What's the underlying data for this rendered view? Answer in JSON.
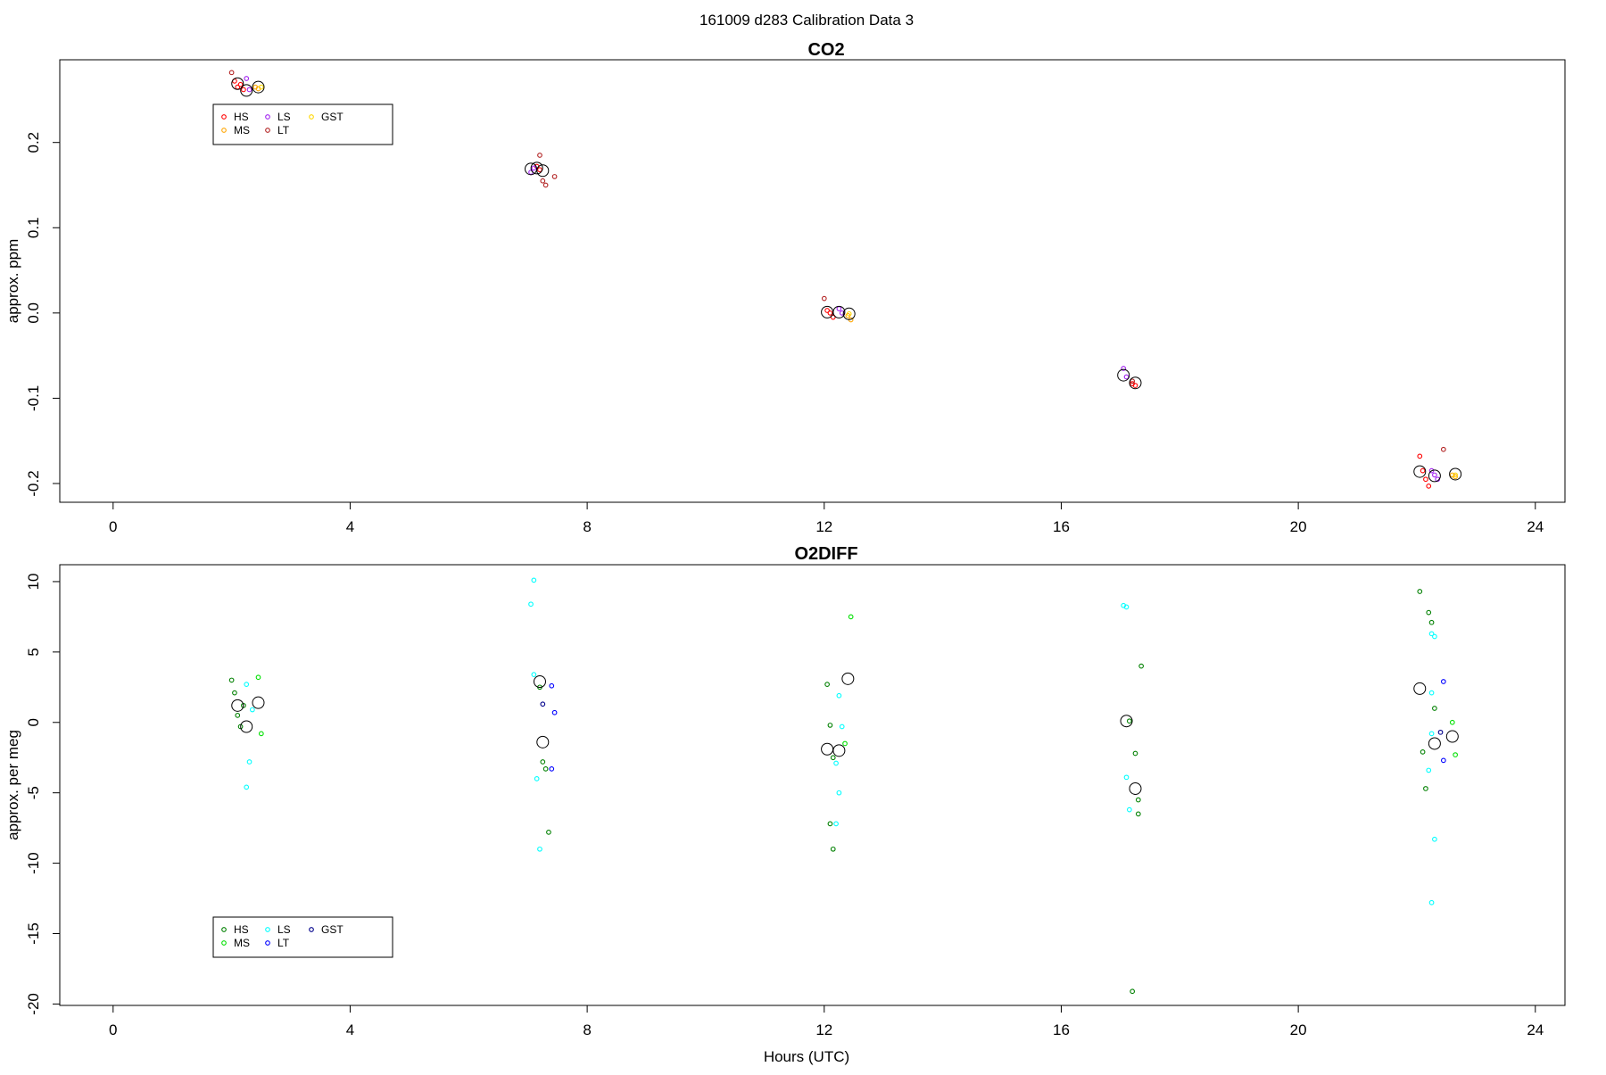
{
  "suptitle": "161009   d283   Calibration Data 3",
  "xlabel": "Hours (UTC)",
  "x_ticks": [
    "0",
    "4",
    "8",
    "12",
    "16",
    "20",
    "24"
  ],
  "chart_data": [
    {
      "type": "scatter",
      "title": "CO2",
      "ylabel": "approx. ppm",
      "xlim": [
        -0.9,
        24.5
      ],
      "ylim": [
        -0.222,
        0.297
      ],
      "yticks": [
        -0.2,
        -0.1,
        0.0,
        0.1,
        0.2
      ],
      "ytick_labels": [
        "-0.2",
        "-0.1",
        "0.0",
        "0.1",
        "0.2"
      ],
      "grid": false,
      "legend_position": "top-left",
      "legend": [
        {
          "name": "HS",
          "color": "#ff0000"
        },
        {
          "name": "MS",
          "color": "#ffa500"
        },
        {
          "name": "LS",
          "color": "#a020f0"
        },
        {
          "name": "LT",
          "color": "#b22222"
        },
        {
          "name": "GST",
          "color": "#ffd700"
        }
      ],
      "series": [
        {
          "name": "HS",
          "color": "#ff0000",
          "points": [
            [
              2.05,
              0.272
            ],
            [
              2.1,
              0.265
            ],
            [
              2.15,
              0.268
            ],
            [
              2.2,
              0.262
            ],
            [
              7.15,
              0.172
            ],
            [
              7.2,
              0.168
            ],
            [
              12.05,
              0.003
            ],
            [
              12.1,
              0.0
            ],
            [
              12.15,
              -0.005
            ],
            [
              17.2,
              -0.083
            ],
            [
              17.25,
              -0.085
            ],
            [
              22.05,
              -0.168
            ],
            [
              22.1,
              -0.185
            ],
            [
              22.15,
              -0.195
            ],
            [
              22.2,
              -0.203
            ]
          ],
          "means": [
            [
              2.1,
              0.269
            ],
            [
              7.15,
              0.17
            ],
            [
              12.05,
              0.001
            ],
            [
              22.05,
              -0.186
            ]
          ]
        },
        {
          "name": "MS",
          "color": "#ffa500",
          "points": [
            [
              2.4,
              0.265
            ],
            [
              2.45,
              0.263
            ],
            [
              12.4,
              -0.003
            ],
            [
              12.45,
              -0.008
            ],
            [
              22.6,
              -0.19
            ],
            [
              22.65,
              -0.192
            ]
          ],
          "means": [
            [
              2.45,
              0.265
            ],
            [
              12.42,
              -0.001
            ],
            [
              22.65,
              -0.189
            ]
          ]
        },
        {
          "name": "LS",
          "color": "#a020f0",
          "points": [
            [
              2.25,
              0.275
            ],
            [
              2.3,
              0.262
            ],
            [
              7.05,
              0.165
            ],
            [
              7.1,
              0.17
            ],
            [
              12.25,
              0.005
            ],
            [
              12.3,
              0.0
            ],
            [
              17.05,
              -0.065
            ],
            [
              17.1,
              -0.075
            ],
            [
              22.25,
              -0.185
            ],
            [
              22.3,
              -0.19
            ],
            [
              22.35,
              -0.195
            ]
          ],
          "means": [
            [
              2.25,
              0.261
            ],
            [
              7.05,
              0.169
            ],
            [
              12.25,
              0.001
            ],
            [
              17.05,
              -0.073
            ],
            [
              22.3,
              -0.191
            ]
          ]
        },
        {
          "name": "LT",
          "color": "#b22222",
          "points": [
            [
              2.0,
              0.282
            ],
            [
              7.2,
              0.185
            ],
            [
              7.25,
              0.155
            ],
            [
              7.3,
              0.15
            ],
            [
              7.45,
              0.16
            ],
            [
              12.0,
              0.017
            ],
            [
              17.2,
              -0.08
            ],
            [
              22.45,
              -0.16
            ]
          ],
          "means": [
            [
              7.25,
              0.167
            ],
            [
              17.25,
              -0.082
            ]
          ]
        },
        {
          "name": "GST",
          "color": "#ffd700",
          "points": [
            [
              2.5,
              0.265
            ],
            [
              12.42,
              -0.001
            ],
            [
              22.65,
              -0.19
            ]
          ],
          "means": []
        }
      ]
    },
    {
      "type": "scatter",
      "title": "O2DIFF",
      "ylabel": "approx. per meg",
      "xlim": [
        -0.9,
        24.5
      ],
      "ylim": [
        -20.1,
        11.2
      ],
      "yticks": [
        -20,
        -15,
        -10,
        -5,
        0,
        5,
        10
      ],
      "ytick_labels": [
        "-20",
        "-15",
        "-10",
        "-5",
        "0",
        "5",
        "10"
      ],
      "grid": false,
      "legend_position": "bottom-left",
      "legend": [
        {
          "name": "HS",
          "color": "#008000"
        },
        {
          "name": "MS",
          "color": "#00e000"
        },
        {
          "name": "LS",
          "color": "#00ffff"
        },
        {
          "name": "LT",
          "color": "#0000ff"
        },
        {
          "name": "GST",
          "color": "#00008b"
        }
      ],
      "series": [
        {
          "name": "HS",
          "color": "#008000",
          "points": [
            [
              2.0,
              3.0
            ],
            [
              2.05,
              2.1
            ],
            [
              2.1,
              0.5
            ],
            [
              2.15,
              -0.3
            ],
            [
              2.2,
              1.2
            ],
            [
              7.2,
              2.5
            ],
            [
              7.25,
              -2.8
            ],
            [
              7.3,
              -3.3
            ],
            [
              7.35,
              -7.8
            ],
            [
              12.05,
              2.7
            ],
            [
              12.1,
              -0.2
            ],
            [
              12.15,
              -2.5
            ],
            [
              12.1,
              -7.2
            ],
            [
              12.15,
              -9.0
            ],
            [
              17.15,
              0.1
            ],
            [
              17.25,
              -2.2
            ],
            [
              17.3,
              -5.5
            ],
            [
              17.3,
              -6.5
            ],
            [
              17.35,
              4.0
            ],
            [
              17.2,
              -19.1
            ],
            [
              22.05,
              9.3
            ],
            [
              22.1,
              -2.1
            ],
            [
              22.15,
              -4.7
            ],
            [
              22.2,
              7.8
            ],
            [
              22.25,
              7.1
            ],
            [
              22.3,
              1.0
            ]
          ],
          "means": [
            [
              2.1,
              1.2
            ],
            [
              7.2,
              2.9
            ],
            [
              12.05,
              -1.9
            ],
            [
              17.1,
              0.1
            ],
            [
              22.05,
              2.4
            ]
          ]
        },
        {
          "name": "MS",
          "color": "#00e000",
          "points": [
            [
              2.45,
              3.2
            ],
            [
              2.5,
              -0.8
            ],
            [
              12.35,
              -1.5
            ],
            [
              12.45,
              7.5
            ],
            [
              22.6,
              0.0
            ],
            [
              22.65,
              -2.3
            ]
          ],
          "means": [
            [
              2.45,
              1.4
            ],
            [
              12.4,
              3.1
            ],
            [
              22.6,
              -1.0
            ]
          ]
        },
        {
          "name": "LS",
          "color": "#00ffff",
          "points": [
            [
              2.25,
              2.7
            ],
            [
              2.3,
              -2.8
            ],
            [
              2.25,
              -4.6
            ],
            [
              2.35,
              0.9
            ],
            [
              7.05,
              8.4
            ],
            [
              7.1,
              10.1
            ],
            [
              7.15,
              -4.0
            ],
            [
              7.2,
              -9.0
            ],
            [
              7.1,
              3.4
            ],
            [
              12.25,
              1.9
            ],
            [
              12.3,
              -0.3
            ],
            [
              12.2,
              -2.9
            ],
            [
              12.25,
              -5.0
            ],
            [
              12.2,
              -7.2
            ],
            [
              17.05,
              8.3
            ],
            [
              17.1,
              8.2
            ],
            [
              17.1,
              -3.9
            ],
            [
              17.15,
              -6.2
            ],
            [
              22.25,
              6.3
            ],
            [
              22.3,
              6.1
            ],
            [
              22.25,
              2.1
            ],
            [
              22.25,
              -0.8
            ],
            [
              22.2,
              -3.4
            ],
            [
              22.3,
              -8.3
            ],
            [
              22.25,
              -12.8
            ]
          ],
          "means": [
            [
              2.25,
              -0.3
            ],
            [
              12.25,
              -2.0
            ],
            [
              22.3,
              -1.5
            ]
          ]
        },
        {
          "name": "LT",
          "color": "#0000ff",
          "points": [
            [
              7.4,
              2.6
            ],
            [
              7.45,
              0.7
            ],
            [
              7.4,
              -3.3
            ],
            [
              22.45,
              2.9
            ],
            [
              22.45,
              -2.7
            ]
          ],
          "means": [
            [
              7.25,
              -1.4
            ],
            [
              17.25,
              -4.7
            ]
          ]
        },
        {
          "name": "GST",
          "color": "#00008b",
          "points": [
            [
              7.25,
              1.3
            ],
            [
              22.4,
              -0.7
            ]
          ],
          "means": []
        }
      ]
    }
  ]
}
